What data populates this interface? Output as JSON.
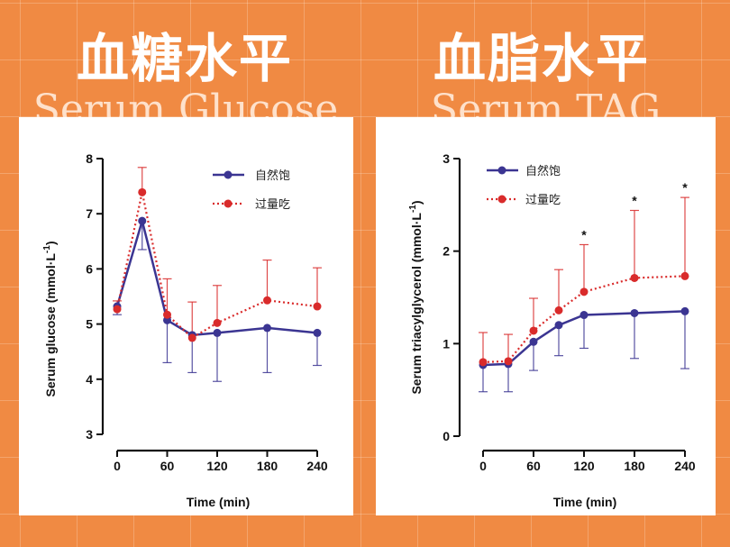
{
  "colors": {
    "background": "#f08a43",
    "fed_series": "#3b3592",
    "overfed_series": "#d92b2b"
  },
  "panels": [
    {
      "title": "血糖水平",
      "subtitle": "Serum Glucose"
    },
    {
      "title": "血脂水平",
      "subtitle": "Serum TAG"
    }
  ],
  "chart_data": [
    {
      "type": "line",
      "xlabel": "Time (min)",
      "ylabel": "Serum glucose (mmol·L",
      "ylabel_sup": "-1",
      "ylabel_end": ")",
      "xlim": [
        0,
        240
      ],
      "ylim": [
        3,
        8
      ],
      "xticks": [
        "0",
        "60",
        "120",
        "180",
        "240"
      ],
      "xtick_values": [
        0,
        60,
        120,
        180,
        240
      ],
      "yticks": [
        "3",
        "4",
        "5",
        "6",
        "7",
        "8"
      ],
      "ytick_values": [
        3,
        4,
        5,
        6,
        7,
        8
      ],
      "x": [
        0,
        30,
        60,
        90,
        120,
        180,
        240
      ],
      "series": [
        {
          "name": "自然饱",
          "style": "solid",
          "color": "#3b3592",
          "values": [
            5.32,
            6.87,
            5.07,
            4.8,
            4.84,
            4.93,
            4.84
          ],
          "error_lower": [
            5.17,
            6.35,
            4.3,
            4.12,
            3.96,
            4.12,
            4.25
          ],
          "error_upper": null
        },
        {
          "name": "过量吃",
          "style": "dotted",
          "color": "#d92b2b",
          "values": [
            5.27,
            7.39,
            5.17,
            4.75,
            5.02,
            5.43,
            5.32
          ],
          "error_lower": null,
          "error_upper": [
            5.42,
            7.84,
            5.82,
            5.4,
            5.7,
            6.16,
            6.02
          ]
        }
      ],
      "significance": []
    },
    {
      "type": "line",
      "xlabel": "Time (min)",
      "ylabel": "Serum triacylglycerol (mmol·L",
      "ylabel_sup": "-1",
      "ylabel_end": ")",
      "xlim": [
        0,
        240
      ],
      "ylim": [
        0,
        3
      ],
      "xticks": [
        "0",
        "60",
        "120",
        "180",
        "240"
      ],
      "xtick_values": [
        0,
        60,
        120,
        180,
        240
      ],
      "yticks": [
        "0",
        "1",
        "2",
        "3"
      ],
      "ytick_values": [
        0,
        1,
        2,
        3
      ],
      "x": [
        0,
        30,
        60,
        90,
        120,
        180,
        240
      ],
      "series": [
        {
          "name": "自然饱",
          "style": "solid",
          "color": "#3b3592",
          "values": [
            0.77,
            0.78,
            1.02,
            1.2,
            1.31,
            1.33,
            1.35
          ],
          "error_lower": [
            0.48,
            0.48,
            0.71,
            0.87,
            0.95,
            0.84,
            0.73
          ],
          "error_upper": null
        },
        {
          "name": "过量吃",
          "style": "dotted",
          "color": "#d92b2b",
          "values": [
            0.8,
            0.81,
            1.14,
            1.36,
            1.56,
            1.71,
            1.73
          ],
          "error_lower": null,
          "error_upper": [
            1.12,
            1.1,
            1.49,
            1.8,
            2.07,
            2.44,
            2.58
          ]
        }
      ],
      "significance": [
        {
          "x": 120,
          "label": "*"
        },
        {
          "x": 180,
          "label": "*"
        },
        {
          "x": 240,
          "label": "*"
        }
      ]
    }
  ]
}
